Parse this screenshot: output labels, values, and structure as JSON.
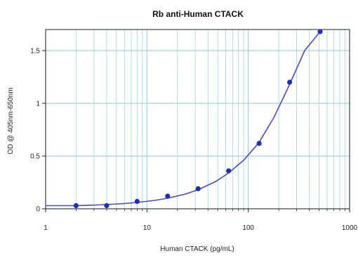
{
  "chart_data": {
    "type": "scatter",
    "title": "Rb anti-Human CTACK",
    "xlabel": "Human CTACK (pg/mL)",
    "ylabel": "OD @ 405nm-650nm",
    "x_scale": "log",
    "xlim": [
      1,
      1000
    ],
    "ylim": [
      0,
      1.7
    ],
    "x_ticks": [
      1,
      10,
      100,
      1000
    ],
    "x_tick_labels": [
      "1",
      "10",
      "100",
      "1000"
    ],
    "y_ticks": [
      0,
      0.5,
      1,
      1.5
    ],
    "y_tick_labels": [
      "0",
      "0.5",
      "1",
      "1.5"
    ],
    "grid": true,
    "colors": {
      "points": "#1f2fb5",
      "curve": "#4a4ac9",
      "grid": "#9fd3e3",
      "axis": "#222222"
    },
    "series": [
      {
        "points": [
          {
            "x": 2,
            "y": 0.03
          },
          {
            "x": 4,
            "y": 0.03
          },
          {
            "x": 8,
            "y": 0.07
          },
          {
            "x": 16,
            "y": 0.12
          },
          {
            "x": 32,
            "y": 0.19
          },
          {
            "x": 64,
            "y": 0.36
          },
          {
            "x": 128,
            "y": 0.62
          },
          {
            "x": 256,
            "y": 1.2
          },
          {
            "x": 512,
            "y": 1.68
          }
        ]
      }
    ],
    "fit_curve": {
      "x": [
        1,
        1.5,
        2,
        3,
        4,
        6,
        8,
        12,
        16,
        24,
        32,
        48,
        64,
        90,
        128,
        180,
        256,
        360,
        512
      ],
      "y": [
        0.03,
        0.03,
        0.03,
        0.035,
        0.04,
        0.05,
        0.06,
        0.08,
        0.1,
        0.14,
        0.18,
        0.26,
        0.34,
        0.46,
        0.63,
        0.87,
        1.18,
        1.5,
        1.68
      ]
    }
  }
}
